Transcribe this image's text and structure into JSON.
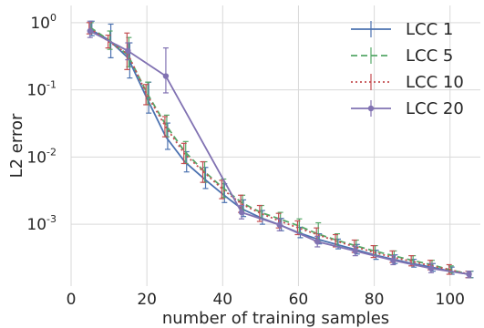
{
  "chart_data": {
    "type": "line",
    "title": "",
    "xlabel": "number of training samples",
    "ylabel": "L2 error",
    "xlim": [
      0,
      108
    ],
    "ylim": [
      0.00012,
      1.8
    ],
    "yscale": "log",
    "grid": true,
    "legend_position": "top-right",
    "xticks": [
      0,
      20,
      40,
      60,
      80,
      100
    ],
    "xtick_labels": [
      "0",
      "20",
      "40",
      "60",
      "80",
      "100"
    ],
    "yticks": [
      0.001,
      0.01,
      0.1,
      1
    ],
    "ytick_labels": [
      {
        "base": "10",
        "exp": "-3"
      },
      {
        "base": "10",
        "exp": "-2"
      },
      {
        "base": "10",
        "exp": "-1"
      },
      {
        "base": "10",
        "exp": "0"
      }
    ],
    "series": [
      {
        "name": "LCC 1",
        "color": "#4c72b0",
        "dash": "solid",
        "marker": "none",
        "errbar_offset": 2,
        "x": [
          5,
          10,
          15,
          20,
          25,
          30,
          35,
          40,
          45,
          50,
          55,
          60,
          65,
          70,
          75,
          80,
          85,
          90,
          95,
          100,
          105
        ],
        "y": [
          0.8,
          0.55,
          0.3,
          0.075,
          0.02,
          0.0085,
          0.0048,
          0.0028,
          0.0017,
          0.00125,
          0.00098,
          0.00075,
          0.0006,
          0.0005,
          0.00042,
          0.00035,
          0.0003,
          0.00026,
          0.00023,
          0.0002,
          0.00018
        ],
        "err_low": [
          0.64,
          0.3,
          0.15,
          0.045,
          0.013,
          0.006,
          0.0034,
          0.0021,
          0.0013,
          0.001,
          0.0008,
          0.00063,
          0.00051,
          0.00043,
          0.00036,
          0.0003,
          0.00026,
          0.00023,
          0.0002,
          0.00018,
          0.00016
        ],
        "err_high": [
          1.05,
          0.95,
          0.5,
          0.13,
          0.032,
          0.012,
          0.007,
          0.004,
          0.0023,
          0.0016,
          0.00122,
          0.0009,
          0.00072,
          0.0006,
          0.0005,
          0.00041,
          0.00035,
          0.0003,
          0.00026,
          0.00023,
          0.0002
        ]
      },
      {
        "name": "LCC 5",
        "color": "#55a868",
        "dash": "dashed",
        "marker": "none",
        "errbar_offset": 1,
        "x": [
          5,
          10,
          15,
          20,
          25,
          30,
          35,
          40,
          45,
          50,
          55,
          60,
          65,
          70,
          75,
          80,
          85,
          90,
          95,
          100,
          105
        ],
        "y": [
          0.85,
          0.55,
          0.33,
          0.09,
          0.03,
          0.012,
          0.0062,
          0.0035,
          0.0021,
          0.0015,
          0.0012,
          0.00095,
          0.00072,
          0.00058,
          0.00048,
          0.0004,
          0.00034,
          0.00029,
          0.00025,
          0.00021,
          0.00018
        ],
        "err_low": [
          0.7,
          0.4,
          0.22,
          0.06,
          0.02,
          0.008,
          0.0042,
          0.0025,
          0.0016,
          0.0012,
          0.00095,
          0.00075,
          0.00055,
          0.00047,
          0.0004,
          0.00034,
          0.00029,
          0.00025,
          0.00022,
          0.00019,
          0.00016
        ],
        "err_high": [
          1.0,
          0.75,
          0.6,
          0.13,
          0.042,
          0.017,
          0.0085,
          0.0047,
          0.0027,
          0.0019,
          0.0015,
          0.0012,
          0.00105,
          0.00072,
          0.00058,
          0.00048,
          0.0004,
          0.00034,
          0.00029,
          0.00024,
          0.0002
        ]
      },
      {
        "name": "LCC 10",
        "color": "#c44e52",
        "dash": "dotted",
        "marker": "none",
        "errbar_offset": -1,
        "x": [
          5,
          10,
          15,
          20,
          25,
          30,
          35,
          40,
          45,
          50,
          55,
          60,
          65,
          70,
          75,
          80,
          85,
          90,
          95,
          100,
          105
        ],
        "y": [
          0.82,
          0.52,
          0.34,
          0.085,
          0.028,
          0.011,
          0.006,
          0.0033,
          0.002,
          0.00145,
          0.00112,
          0.00088,
          0.0007,
          0.00056,
          0.00046,
          0.00038,
          0.00032,
          0.00028,
          0.00024,
          0.00021,
          0.00018
        ],
        "err_low": [
          0.68,
          0.42,
          0.2,
          0.06,
          0.02,
          0.008,
          0.0042,
          0.0024,
          0.0015,
          0.0011,
          0.00088,
          0.0007,
          0.00056,
          0.00046,
          0.00038,
          0.00032,
          0.00027,
          0.00024,
          0.00021,
          0.00018,
          0.00016
        ],
        "err_high": [
          1.0,
          0.65,
          0.7,
          0.12,
          0.04,
          0.016,
          0.0085,
          0.0045,
          0.0027,
          0.0019,
          0.00145,
          0.00112,
          0.00088,
          0.0007,
          0.00058,
          0.00048,
          0.0004,
          0.00034,
          0.00029,
          0.00025,
          0.0002
        ]
      },
      {
        "name": "LCC 20",
        "color": "#8172b2",
        "dash": "solid",
        "marker": "dot",
        "errbar_offset": 0,
        "x": [
          5,
          15,
          25,
          45,
          55,
          65,
          75,
          85,
          95,
          105
        ],
        "y": [
          0.75,
          0.38,
          0.16,
          0.0015,
          0.00098,
          0.00055,
          0.0004,
          0.00029,
          0.00022,
          0.00018
        ],
        "err_low": [
          0.6,
          0.28,
          0.09,
          0.0012,
          0.0008,
          0.00046,
          0.00034,
          0.00025,
          0.00019,
          0.00016
        ],
        "err_high": [
          1.05,
          0.5,
          0.42,
          0.0019,
          0.0012,
          0.00066,
          0.00047,
          0.00034,
          0.00026,
          0.0002
        ]
      }
    ]
  }
}
